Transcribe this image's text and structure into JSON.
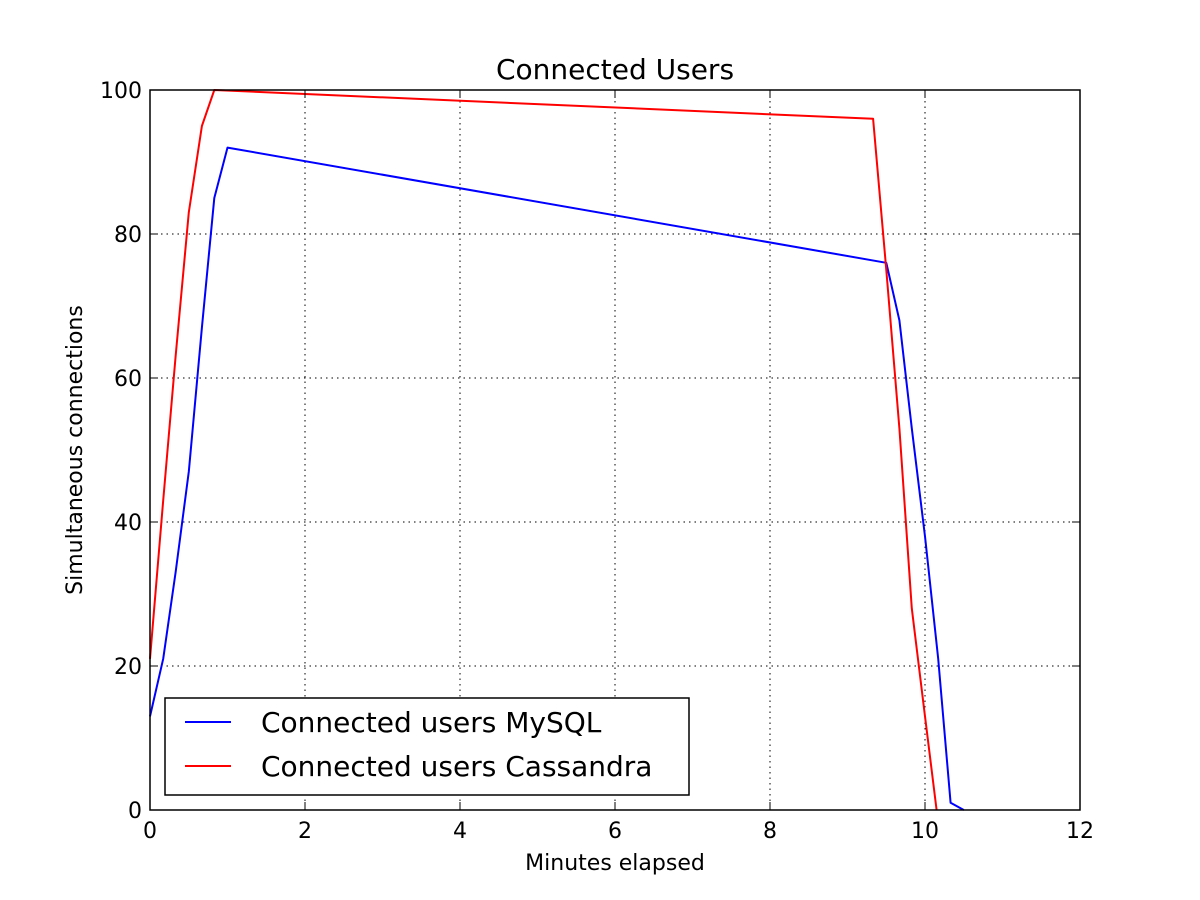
{
  "chart_data": {
    "type": "line",
    "title": "Connected Users",
    "xlabel": "Minutes elapsed",
    "ylabel": "Simultaneous connections",
    "xlim": [
      0,
      12
    ],
    "ylim": [
      0,
      100
    ],
    "xticks": [
      "0",
      "2",
      "4",
      "6",
      "8",
      "10",
      "12"
    ],
    "yticks": [
      "0",
      "20",
      "40",
      "60",
      "80",
      "100"
    ],
    "xtick_values": [
      0,
      2,
      4,
      6,
      8,
      10,
      12
    ],
    "ytick_values": [
      0,
      20,
      40,
      60,
      80,
      100
    ],
    "grid": true,
    "legend_position": "lower-left",
    "series": [
      {
        "name": "Connected users MySQL",
        "color": "#0000ff",
        "x": [
          0,
          0.17,
          0.33,
          0.5,
          0.67,
          0.83,
          1.0,
          9.5,
          9.67,
          9.83,
          10.0,
          10.17,
          10.33,
          10.5
        ],
        "y": [
          13,
          21,
          33,
          47,
          67,
          85,
          92,
          76,
          68,
          53,
          38,
          21,
          1,
          0
        ]
      },
      {
        "name": "Connected users Cassandra",
        "color": "#ff0000",
        "x": [
          0,
          0.17,
          0.33,
          0.5,
          0.67,
          0.83,
          9.33,
          9.5,
          9.67,
          9.83,
          10.0,
          10.15
        ],
        "y": [
          21,
          43,
          63,
          83,
          95,
          100,
          96,
          75,
          53,
          28,
          13,
          0
        ]
      }
    ]
  }
}
